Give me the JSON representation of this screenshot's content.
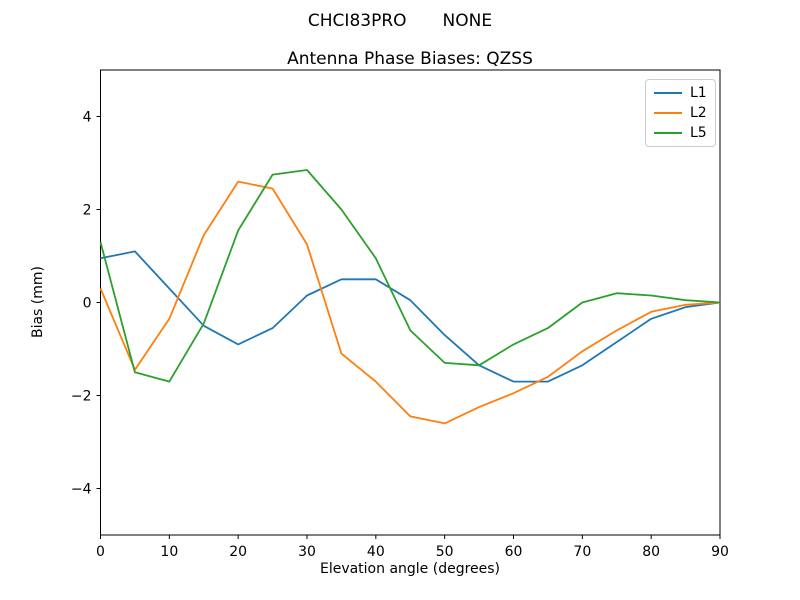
{
  "figure": {
    "suptitle_left": "CHCI83PRO",
    "suptitle_right": "NONE",
    "title": "Antenna Phase Biases: QZSS"
  },
  "axes": {
    "xlabel": "Elevation angle (degrees)",
    "ylabel": "Bias (mm)",
    "x_ticks": [
      0,
      10,
      20,
      30,
      40,
      50,
      60,
      70,
      80,
      90
    ],
    "y_ticks": [
      -4,
      -2,
      0,
      2,
      4
    ],
    "xlim": [
      0,
      90
    ],
    "ylim": [
      -5,
      5
    ]
  },
  "legend": {
    "entries": [
      {
        "label": "L1",
        "color": "#1f77b4"
      },
      {
        "label": "L2",
        "color": "#ff7f0e"
      },
      {
        "label": "L5",
        "color": "#2ca02c"
      }
    ],
    "position": "upper right"
  },
  "chart_data": {
    "type": "line",
    "title": "Antenna Phase Biases: QZSS",
    "xlabel": "Elevation angle (degrees)",
    "ylabel": "Bias (mm)",
    "xlim": [
      0,
      90
    ],
    "ylim": [
      -5,
      5
    ],
    "grid": false,
    "legend_position": "upper right",
    "x": [
      0,
      5,
      10,
      15,
      20,
      25,
      30,
      35,
      40,
      45,
      50,
      55,
      60,
      65,
      70,
      75,
      80,
      85,
      90
    ],
    "series": [
      {
        "name": "L1",
        "color": "#1f77b4",
        "values": [
          0.95,
          1.1,
          0.3,
          -0.5,
          -0.9,
          -0.55,
          0.15,
          0.5,
          0.5,
          0.05,
          -0.7,
          -1.35,
          -1.7,
          -1.7,
          -1.35,
          -0.85,
          -0.35,
          -0.1,
          0.0
        ]
      },
      {
        "name": "L2",
        "color": "#ff7f0e",
        "values": [
          0.3,
          -1.45,
          -0.35,
          1.45,
          2.6,
          2.45,
          1.25,
          -1.1,
          -1.7,
          -2.45,
          -2.6,
          -2.25,
          -1.95,
          -1.6,
          -1.05,
          -0.6,
          -0.2,
          -0.05,
          0.0
        ]
      },
      {
        "name": "L5",
        "color": "#2ca02c",
        "values": [
          1.3,
          -1.5,
          -1.7,
          -0.45,
          1.55,
          2.75,
          2.85,
          2.0,
          0.95,
          -0.6,
          -1.3,
          -1.35,
          -0.9,
          -0.55,
          0.0,
          0.2,
          0.15,
          0.05,
          0.0
        ]
      }
    ]
  }
}
